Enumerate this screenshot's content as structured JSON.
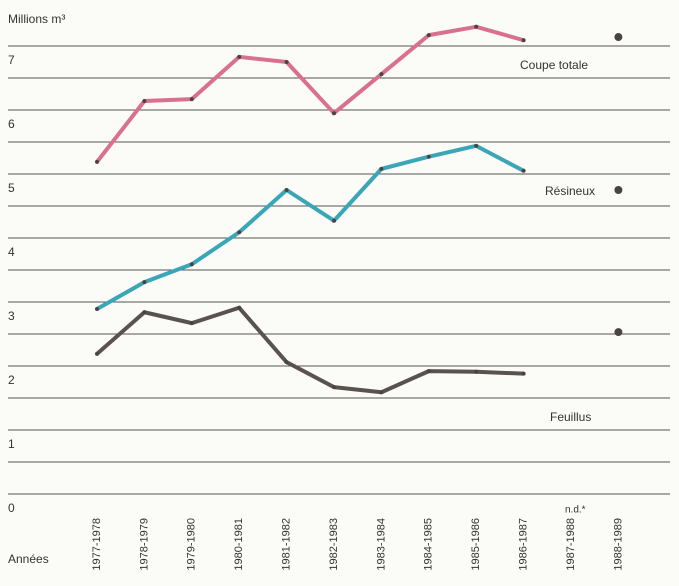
{
  "chart_data": {
    "type": "line",
    "y_axis_label": "Millions m³",
    "x_axis_label": "Années",
    "na_label": "n.d.*",
    "categories": [
      "1977-1978",
      "1978-1979",
      "1979-1980",
      "1980-1981",
      "1981-1982",
      "1982-1983",
      "1983-1984",
      "1984-1985",
      "1985-1986",
      "1986-1987",
      "1987-1988",
      "1988-1989"
    ],
    "series": [
      {
        "name": "Coupe totale",
        "color": "#d9708f",
        "values": [
          5.19,
          6.14,
          6.17,
          6.83,
          6.75,
          5.95,
          6.56,
          7.17,
          7.3,
          7.09,
          null,
          7.14
        ]
      },
      {
        "name": "Résineux",
        "color": "#3aa6b8",
        "values": [
          2.89,
          3.31,
          3.59,
          4.09,
          4.75,
          4.27,
          5.08,
          5.27,
          5.44,
          5.05,
          null,
          4.75
        ]
      },
      {
        "name": "Feuillus",
        "color": "#5a524e",
        "values": [
          2.19,
          2.84,
          2.67,
          2.91,
          2.06,
          1.67,
          1.59,
          1.92,
          1.91,
          1.88,
          null,
          2.53
        ]
      }
    ],
    "marker_color": "#4a4440",
    "ylim": [
      0,
      7.5
    ],
    "yticks": [
      0,
      1,
      2,
      3,
      4,
      5,
      6,
      7
    ],
    "minor_yticks": [
      0.5,
      1.5,
      2.5,
      3.5,
      4.5,
      5.5,
      6.5
    ],
    "grid": true
  }
}
